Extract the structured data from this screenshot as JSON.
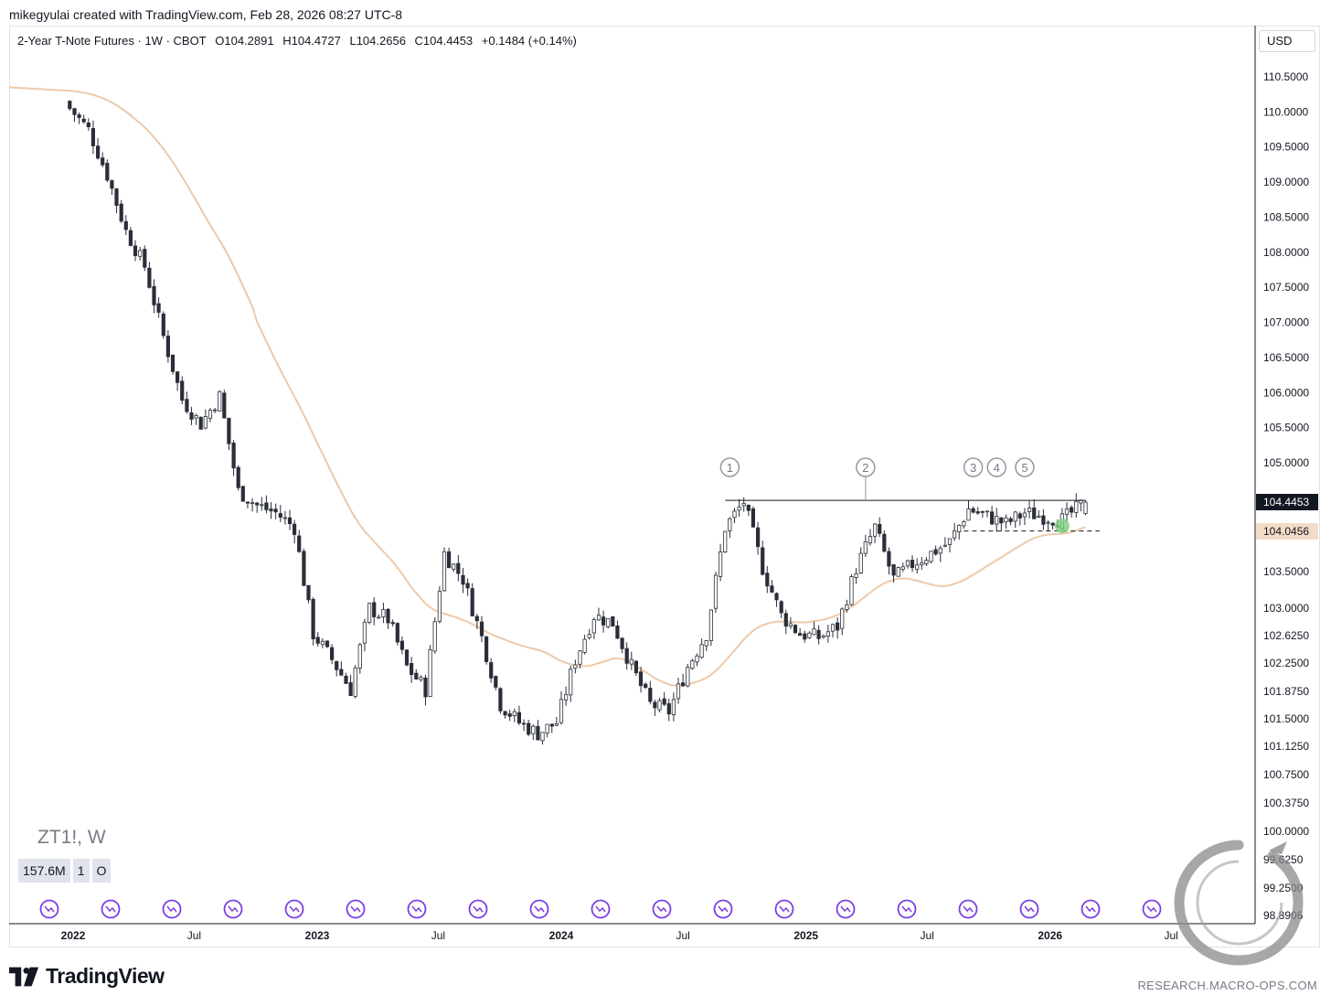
{
  "header": {
    "text": "mikegyulai created with TradingView.com, Feb 28, 2026 08:27 UTC-8"
  },
  "legend": {
    "title": "2-Year T-Note Futures · 1W · CBOT",
    "open": "O104.2891",
    "high": "H104.4727",
    "low": "L104.2656",
    "close": "C104.4453",
    "change": "+0.1484 (+0.14%)"
  },
  "currency": "USD",
  "symbol_label": "ZT1!, W",
  "volume_boxes": [
    "157.6M",
    "1",
    "O"
  ],
  "brand": "TradingView",
  "footer_url": "RESEARCH.MACRO-OPS.COM",
  "colors": {
    "up_candle": "#ffffff",
    "down_candle": "#2a2e39",
    "candle_outline": "#2a2e39",
    "moving_average": "#eec9a8",
    "last_price_bg": "#131722",
    "ma_price_bg": "#f3dcc7",
    "event_icon": "#7b3fe4",
    "grid": "#ffffff"
  },
  "chart_data": {
    "type": "candlestick",
    "interval": "weekly",
    "y_axis": {
      "ticks": [
        "110.5000",
        "110.0000",
        "109.5000",
        "109.0000",
        "108.5000",
        "108.0000",
        "107.5000",
        "107.0000",
        "106.5000",
        "106.0000",
        "105.5000",
        "105.0000",
        "103.5000",
        "103.0000",
        "102.6250",
        "102.2500",
        "101.8750",
        "101.5000",
        "101.1250",
        "100.7500",
        "100.3750",
        "100.0000",
        "99.6250",
        "99.2500",
        "98.8906"
      ],
      "scale": "custom-log-like",
      "last_price": "104.4453",
      "ma_price": "104.0456"
    },
    "x_axis": {
      "ticks": [
        {
          "label": "2022",
          "major": true
        },
        {
          "label": "Jul",
          "major": false
        },
        {
          "label": "2023",
          "major": true
        },
        {
          "label": "Jul",
          "major": false
        },
        {
          "label": "2024",
          "major": true
        },
        {
          "label": "Jul",
          "major": false
        },
        {
          "label": "2025",
          "major": true
        },
        {
          "label": "Jul",
          "major": false
        },
        {
          "label": "2026",
          "major": true
        },
        {
          "label": "Jul",
          "major": false
        }
      ]
    },
    "annotations": {
      "resistance_level": 104.47,
      "support_level": 104.05,
      "touches": [
        "1",
        "2",
        "3",
        "4",
        "5"
      ]
    },
    "close_path": [
      [
        "2021-12-27",
        110.05
      ],
      [
        "2022-01-24",
        109.75
      ],
      [
        "2022-02-21",
        109.1
      ],
      [
        "2022-03-21",
        108.3
      ],
      [
        "2022-04-18",
        107.8
      ],
      [
        "2022-05-16",
        106.8
      ],
      [
        "2022-06-13",
        105.9
      ],
      [
        "2022-07-11",
        105.55
      ],
      [
        "2022-08-08",
        105.95
      ],
      [
        "2022-09-05",
        104.6
      ],
      [
        "2022-10-03",
        104.4
      ],
      [
        "2022-10-31",
        104.3
      ],
      [
        "2022-11-28",
        104.1
      ],
      [
        "2022-12-26",
        102.65
      ],
      [
        "2023-01-23",
        102.3
      ],
      [
        "2023-02-20",
        101.9
      ],
      [
        "2023-03-20",
        103.0
      ],
      [
        "2023-04-17",
        102.85
      ],
      [
        "2023-05-15",
        102.2
      ],
      [
        "2023-06-12",
        101.9
      ],
      [
        "2023-07-10",
        103.75
      ],
      [
        "2023-08-07",
        103.4
      ],
      [
        "2023-09-04",
        102.6
      ],
      [
        "2023-10-02",
        101.7
      ],
      [
        "2023-10-30",
        101.45
      ],
      [
        "2023-11-27",
        101.3
      ],
      [
        "2023-12-25",
        101.45
      ],
      [
        "2024-01-22",
        102.3
      ],
      [
        "2024-02-19",
        102.9
      ],
      [
        "2024-03-18",
        102.8
      ],
      [
        "2024-04-15",
        102.2
      ],
      [
        "2024-05-13",
        101.7
      ],
      [
        "2024-06-10",
        101.6
      ],
      [
        "2024-07-08",
        102.2
      ],
      [
        "2024-08-05",
        102.65
      ],
      [
        "2024-09-02",
        104.1
      ],
      [
        "2024-09-30",
        104.45
      ],
      [
        "2024-10-28",
        103.55
      ],
      [
        "2024-11-25",
        102.9
      ],
      [
        "2024-12-23",
        102.65
      ],
      [
        "2025-01-20",
        102.6
      ],
      [
        "2025-02-17",
        102.75
      ],
      [
        "2025-03-17",
        103.55
      ],
      [
        "2025-04-14",
        104.1
      ],
      [
        "2025-05-12",
        103.4
      ],
      [
        "2025-06-09",
        103.6
      ],
      [
        "2025-07-07",
        103.75
      ],
      [
        "2025-08-04",
        103.9
      ],
      [
        "2025-09-01",
        104.35
      ],
      [
        "2025-09-29",
        104.25
      ],
      [
        "2025-10-27",
        104.15
      ],
      [
        "2025-11-24",
        104.3
      ],
      [
        "2025-12-22",
        104.25
      ],
      [
        "2026-01-19",
        104.2
      ],
      [
        "2026-02-23",
        104.4453
      ]
    ]
  }
}
